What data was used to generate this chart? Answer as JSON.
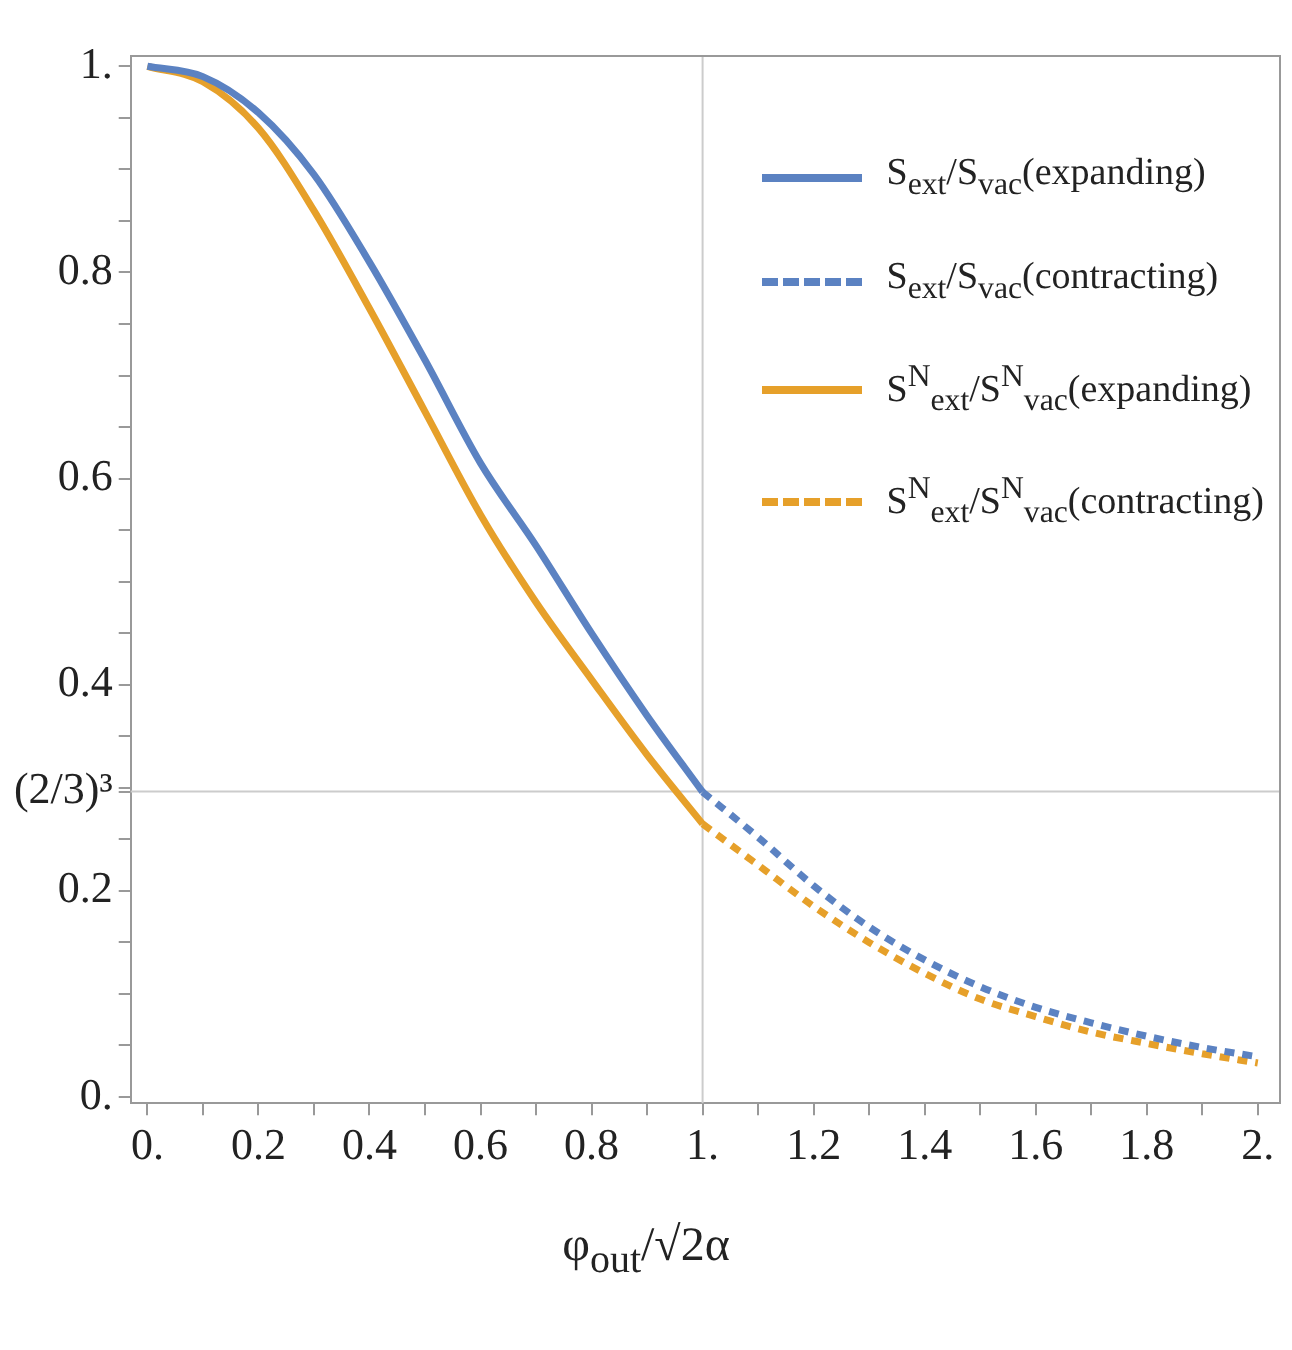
{
  "chart_data": {
    "type": "line",
    "xlabel": "φ$_{out}$/√2α",
    "xlim": [
      -0.03,
      2.04
    ],
    "ylim": [
      -0.006,
      1.01
    ],
    "xticks": [
      {
        "value": 0,
        "label": "0."
      },
      {
        "value": 0.1,
        "label": null
      },
      0.2,
      {
        "value": 0.3,
        "label": null
      },
      0.4,
      {
        "value": 0.5,
        "label": null
      },
      0.6,
      {
        "value": 0.7,
        "label": null
      },
      0.8,
      {
        "value": 0.9,
        "label": null
      },
      {
        "value": 1,
        "label": "1."
      },
      {
        "value": 1.1,
        "label": null
      },
      1.2,
      {
        "value": 1.3,
        "label": null
      },
      1.4,
      {
        "value": 1.5,
        "label": null
      },
      1.6,
      {
        "value": 1.7,
        "label": null
      },
      1.8,
      {
        "value": 1.9,
        "label": null
      },
      {
        "value": 2,
        "label": "2."
      }
    ],
    "yticks": [
      {
        "value": 0,
        "label": "0."
      },
      {
        "value": 0.05,
        "label": null
      },
      {
        "value": 0.1,
        "label": null
      },
      {
        "value": 0.15,
        "label": null
      },
      0.2,
      {
        "value": 0.25,
        "label": null
      },
      {
        "value": 0.2963,
        "label": "(2/3)³"
      },
      {
        "value": 0.3,
        "label": null
      },
      {
        "value": 0.35,
        "label": null
      },
      0.4,
      {
        "value": 0.45,
        "label": null
      },
      {
        "value": 0.5,
        "label": null
      },
      {
        "value": 0.55,
        "label": null
      },
      0.6,
      {
        "value": 0.65,
        "label": null
      },
      {
        "value": 0.7,
        "label": null
      },
      {
        "value": 0.75,
        "label": null
      },
      0.8,
      {
        "value": 0.85,
        "label": null
      },
      {
        "value": 0.9,
        "label": null
      },
      {
        "value": 0.95,
        "label": null
      },
      {
        "value": 1,
        "label": "1."
      }
    ],
    "grid": false,
    "legend": "top right",
    "marker": "none",
    "ref_lines": [
      {
        "axis": "x",
        "value": 1,
        "color": "#cccccc"
      },
      {
        "axis": "y",
        "value": 0.2963,
        "color": "#cccccc"
      }
    ],
    "series": [
      {
        "name": "S$_{ext}$/S$_{vac}$(expanding)",
        "color": "#5b82c2",
        "line_style": "solid",
        "x": [
          0,
          0.1,
          0.2,
          0.3,
          0.4,
          0.5,
          0.6,
          0.7,
          0.8,
          0.9,
          1.0
        ],
        "values": [
          1.0,
          0.99,
          0.955,
          0.895,
          0.81,
          0.715,
          0.615,
          0.535,
          0.45,
          0.37,
          0.296
        ]
      },
      {
        "name": "S$_{ext}$/S$_{vac}$(contracting)",
        "color": "#5b82c2",
        "line_style": "dashed",
        "x": [
          1.0,
          1.1,
          1.2,
          1.3,
          1.4,
          1.5,
          1.6,
          1.7,
          1.8,
          1.9,
          2.0
        ],
        "values": [
          0.296,
          0.252,
          0.205,
          0.165,
          0.133,
          0.107,
          0.087,
          0.072,
          0.059,
          0.048,
          0.039
        ]
      },
      {
        "name": "S$^{N}$$_{ext}$/S$^{N}$$_{vac}$(expanding)",
        "color": "#e6a02a",
        "line_style": "solid",
        "x": [
          0,
          0.1,
          0.2,
          0.3,
          0.4,
          0.5,
          0.6,
          0.7,
          0.8,
          0.9,
          1.0
        ],
        "values": [
          1.0,
          0.985,
          0.94,
          0.86,
          0.765,
          0.665,
          0.565,
          0.48,
          0.405,
          0.332,
          0.265
        ]
      },
      {
        "name": "S$^{N}$$_{ext}$/S$^{N}$$_{vac}$(contracting)",
        "color": "#e6a02a",
        "line_style": "dashed",
        "x": [
          1.0,
          1.1,
          1.2,
          1.3,
          1.4,
          1.5,
          1.6,
          1.7,
          1.8,
          1.9,
          2.0
        ],
        "values": [
          0.265,
          0.225,
          0.185,
          0.15,
          0.12,
          0.095,
          0.078,
          0.063,
          0.052,
          0.042,
          0.033
        ]
      }
    ]
  }
}
